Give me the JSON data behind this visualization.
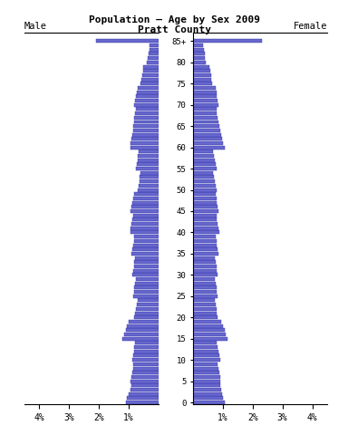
{
  "title": "Population — Age by Sex 2009\nPratt County",
  "male_label": "Male",
  "female_label": "Female",
  "age_groups": [
    0,
    5,
    10,
    15,
    20,
    25,
    30,
    35,
    40,
    45,
    50,
    55,
    60,
    65,
    70,
    75,
    80,
    "85+"
  ],
  "age_ticks": [
    0,
    5,
    10,
    15,
    20,
    25,
    30,
    35,
    40,
    45,
    50,
    55,
    60,
    65,
    70,
    75,
    80,
    85
  ],
  "male_single": [
    1.1,
    1.05,
    1.0,
    0.95,
    0.9,
    0.95,
    0.9,
    0.88,
    0.85,
    0.85,
    0.88,
    0.85,
    0.82,
    0.8,
    0.78,
    1.2,
    1.15,
    1.1,
    1.05,
    1.0,
    0.8,
    0.78,
    0.75,
    0.72,
    0.7,
    0.85,
    0.82,
    0.8,
    0.78,
    0.75,
    0.88,
    0.85,
    0.82,
    0.8,
    0.78,
    0.9,
    0.88,
    0.85,
    0.82,
    0.8,
    0.95,
    0.92,
    0.9,
    0.88,
    0.85,
    0.92,
    0.9,
    0.88,
    0.85,
    0.82,
    0.68,
    0.65,
    0.63,
    0.62,
    0.6,
    0.75,
    0.72,
    0.7,
    0.68,
    0.65,
    0.95,
    0.92,
    0.9,
    0.88,
    0.85,
    0.85,
    0.82,
    0.8,
    0.78,
    0.75,
    0.8,
    0.78,
    0.75,
    0.72,
    0.7,
    0.6,
    0.58,
    0.55,
    0.52,
    0.5,
    0.38,
    0.35,
    0.33,
    0.31,
    0.3,
    2.1
  ],
  "female_single": [
    1.05,
    1.0,
    0.98,
    0.95,
    0.92,
    0.92,
    0.9,
    0.88,
    0.85,
    0.82,
    0.9,
    0.88,
    0.85,
    0.82,
    0.8,
    1.15,
    1.1,
    1.05,
    1.0,
    0.95,
    0.82,
    0.8,
    0.78,
    0.75,
    0.72,
    0.82,
    0.8,
    0.78,
    0.75,
    0.72,
    0.82,
    0.8,
    0.78,
    0.75,
    0.72,
    0.85,
    0.82,
    0.8,
    0.78,
    0.75,
    0.88,
    0.85,
    0.82,
    0.8,
    0.78,
    0.85,
    0.82,
    0.8,
    0.78,
    0.75,
    0.78,
    0.75,
    0.72,
    0.7,
    0.68,
    0.78,
    0.75,
    0.72,
    0.7,
    0.68,
    1.05,
    1.0,
    0.98,
    0.95,
    0.92,
    0.88,
    0.85,
    0.82,
    0.8,
    0.78,
    0.85,
    0.82,
    0.8,
    0.78,
    0.75,
    0.65,
    0.62,
    0.6,
    0.58,
    0.55,
    0.42,
    0.4,
    0.38,
    0.35,
    0.33,
    2.3
  ],
  "bar_color": "#6666cc",
  "bar_edge_color": "#3333aa",
  "xlim": 4.5,
  "bg_color": "#ffffff",
  "fig_width": 3.84,
  "fig_height": 4.8
}
